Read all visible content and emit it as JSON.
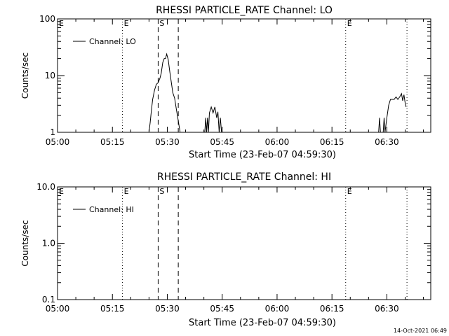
{
  "chart_data": [
    {
      "type": "line",
      "title": "RHESSI PARTICLE_RATE Channel: LO",
      "xlabel": "Start Time (23-Feb-07 04:59:30)",
      "ylabel": "Counts/sec",
      "yscale": "log",
      "ylim": [
        1,
        100
      ],
      "yticks": [
        1,
        10,
        100
      ],
      "ytick_labels": [
        "1",
        "10",
        "100"
      ],
      "xlim": [
        "05:00",
        "06:42"
      ],
      "xticks": [
        "05:00",
        "05:15",
        "05:30",
        "05:45",
        "06:00",
        "06:15",
        "06:30"
      ],
      "legend": {
        "position": "top-left"
      },
      "series": [
        {
          "name": "Channel: LO",
          "points": [
            [
              "05:25:00",
              1
            ],
            [
              "05:25:20",
              1.5
            ],
            [
              "05:25:40",
              2.5
            ],
            [
              "05:26:00",
              3.8
            ],
            [
              "05:26:30",
              5.5
            ],
            [
              "05:27:00",
              7
            ],
            [
              "05:27:30",
              7.5
            ],
            [
              "05:28:00",
              9
            ],
            [
              "05:28:20",
              11
            ],
            [
              "05:28:45",
              17
            ],
            [
              "05:29:10",
              20
            ],
            [
              "05:29:30",
              20
            ],
            [
              "05:29:50",
              24
            ],
            [
              "05:30:15",
              19
            ],
            [
              "05:30:40",
              12
            ],
            [
              "05:31:10",
              7
            ],
            [
              "05:31:30",
              5
            ],
            [
              "05:32:00",
              4
            ],
            [
              "05:32:30",
              2.5
            ],
            [
              "05:33:00",
              1.6
            ],
            [
              "05:33:30",
              1
            ],
            [
              "05:40:15",
              1
            ],
            [
              "05:40:30",
              1.8
            ],
            [
              "05:40:45",
              1
            ],
            [
              "05:41:00",
              1.8
            ],
            [
              "05:41:15",
              1
            ],
            [
              "05:41:30",
              2.2
            ],
            [
              "05:42:00",
              2.8
            ],
            [
              "05:42:30",
              2.2
            ],
            [
              "05:43:00",
              2.8
            ],
            [
              "05:43:30",
              1.8
            ],
            [
              "05:43:50",
              2.3
            ],
            [
              "05:44:10",
              1
            ],
            [
              "05:44:30",
              1.8
            ],
            [
              "05:44:50",
              1
            ],
            [
              "06:27:45",
              1
            ],
            [
              "06:28:00",
              1.8
            ],
            [
              "06:28:15",
              1
            ],
            [
              "06:29:00",
              1
            ],
            [
              "06:29:15",
              1.8
            ],
            [
              "06:29:30",
              1
            ],
            [
              "06:30:00",
              1.8
            ],
            [
              "06:30:30",
              3
            ],
            [
              "06:31:00",
              3.8
            ],
            [
              "06:31:30",
              3.8
            ],
            [
              "06:32:00",
              3.8
            ],
            [
              "06:32:30",
              4.2
            ],
            [
              "06:33:00",
              3.8
            ],
            [
              "06:33:30",
              4.2
            ],
            [
              "06:34:00",
              4.8
            ],
            [
              "06:34:20",
              3.6
            ],
            [
              "06:34:40",
              4.6
            ],
            [
              "06:35:00",
              3.3
            ],
            [
              "06:35:15",
              2.8
            ]
          ]
        }
      ],
      "vlines": [
        {
          "time": "05:17:45",
          "style": "dotted",
          "label": "E"
        },
        {
          "time": "05:27:30",
          "style": "dashed",
          "label": "S"
        },
        {
          "time": "05:33:00",
          "style": "dashed",
          "label": ""
        },
        {
          "time": "06:18:45",
          "style": "dotted",
          "label": "E"
        },
        {
          "time": "06:35:30",
          "style": "dotted",
          "label": ""
        }
      ],
      "edge_label": "E"
    },
    {
      "type": "line",
      "title": "RHESSI PARTICLE_RATE Channel: HI",
      "xlabel": "Start Time (23-Feb-07 04:59:30)",
      "ylabel": "Counts/sec",
      "yscale": "log",
      "ylim": [
        0.1,
        10
      ],
      "yticks": [
        0.1,
        1,
        10
      ],
      "ytick_labels": [
        "0.1",
        "1.0",
        "10.0"
      ],
      "xlim": [
        "05:00",
        "06:42"
      ],
      "xticks": [
        "05:00",
        "05:15",
        "05:30",
        "05:45",
        "06:00",
        "06:15",
        "06:30"
      ],
      "legend": {
        "position": "top-left"
      },
      "series": [
        {
          "name": "Channel: HI",
          "points": []
        }
      ],
      "vlines": [
        {
          "time": "05:17:45",
          "style": "dotted",
          "label": "E"
        },
        {
          "time": "05:27:30",
          "style": "dashed",
          "label": "S"
        },
        {
          "time": "05:33:00",
          "style": "dashed",
          "label": ""
        },
        {
          "time": "06:18:45",
          "style": "dotted",
          "label": "E"
        },
        {
          "time": "06:35:30",
          "style": "dotted",
          "label": ""
        }
      ],
      "edge_label": "E"
    }
  ],
  "footer": {
    "timestamp": "14-Oct-2021 06:49"
  }
}
